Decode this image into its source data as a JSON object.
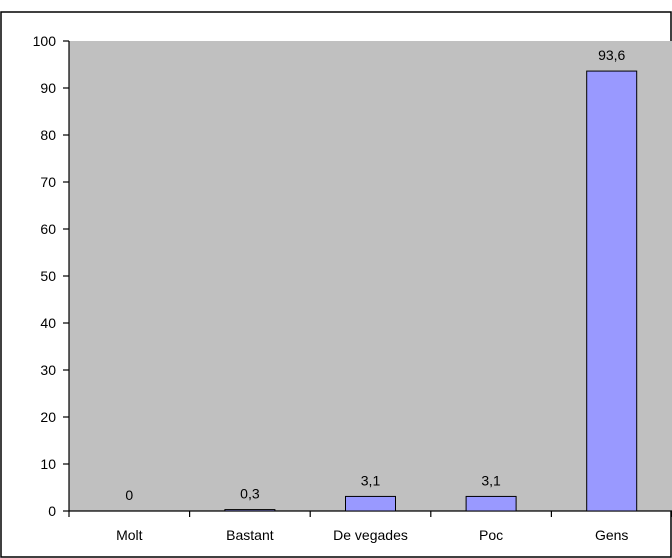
{
  "chart_data": {
    "type": "bar",
    "categories": [
      "Molt",
      "Bastant",
      "De vegades",
      "Poc",
      "Gens"
    ],
    "values": [
      0,
      0.3,
      3.1,
      3.1,
      93.6
    ],
    "data_labels": [
      "0",
      "0,3",
      "3,1",
      "3,1",
      "93,6"
    ],
    "y_ticks": [
      "0",
      "10",
      "20",
      "30",
      "40",
      "50",
      "60",
      "70",
      "80",
      "90",
      "100"
    ],
    "title": "",
    "xlabel": "",
    "ylabel": "",
    "ylim": [
      0,
      100
    ],
    "grid": false,
    "legend": "none",
    "colors": {
      "plot_background": "#c0c0c0",
      "bar_fill": "#9999ff",
      "bar_stroke": "#000000",
      "axis": "#000000",
      "frame": "#000000"
    }
  }
}
